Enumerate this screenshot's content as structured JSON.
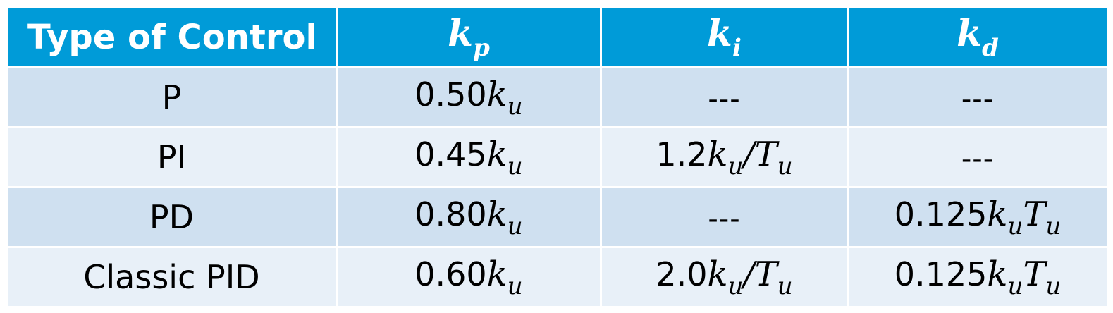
{
  "table": {
    "headers": {
      "type": "Type of Control",
      "kp": {
        "base": "k",
        "sub": "p"
      },
      "ki": {
        "base": "k",
        "sub": "i"
      },
      "kd": {
        "base": "k",
        "sub": "d"
      }
    },
    "rows": [
      {
        "type": "P",
        "kp": {
          "coef": "0.50",
          "var1": "k",
          "sub1": "u"
        },
        "ki": "---",
        "kd": "---"
      },
      {
        "type": "PI",
        "kp": {
          "coef": "0.45",
          "var1": "k",
          "sub1": "u"
        },
        "ki": {
          "coef": "1.2",
          "var1": "k",
          "sub1": "u",
          "op": "/",
          "var2": "T",
          "sub2": "u"
        },
        "kd": "---"
      },
      {
        "type": "PD",
        "kp": {
          "coef": "0.80",
          "var1": "k",
          "sub1": "u"
        },
        "ki": "---",
        "kd": {
          "coef": "0.125",
          "var1": "k",
          "sub1": "u",
          "var2": "T",
          "sub2": "u"
        }
      },
      {
        "type": "Classic PID",
        "kp": {
          "coef": "0.60",
          "var1": "k",
          "sub1": "u"
        },
        "ki": {
          "coef": "2.0",
          "var1": "k",
          "sub1": "u",
          "op": "/",
          "var2": "T",
          "sub2": "u"
        },
        "kd": {
          "coef": "0.125",
          "var1": "k",
          "sub1": "u",
          "var2": "T",
          "sub2": "u"
        }
      }
    ]
  },
  "colors": {
    "header_bg": "#009bd8",
    "row_odd_bg": "#cfe0f0",
    "row_even_bg": "#e8f0f8"
  }
}
